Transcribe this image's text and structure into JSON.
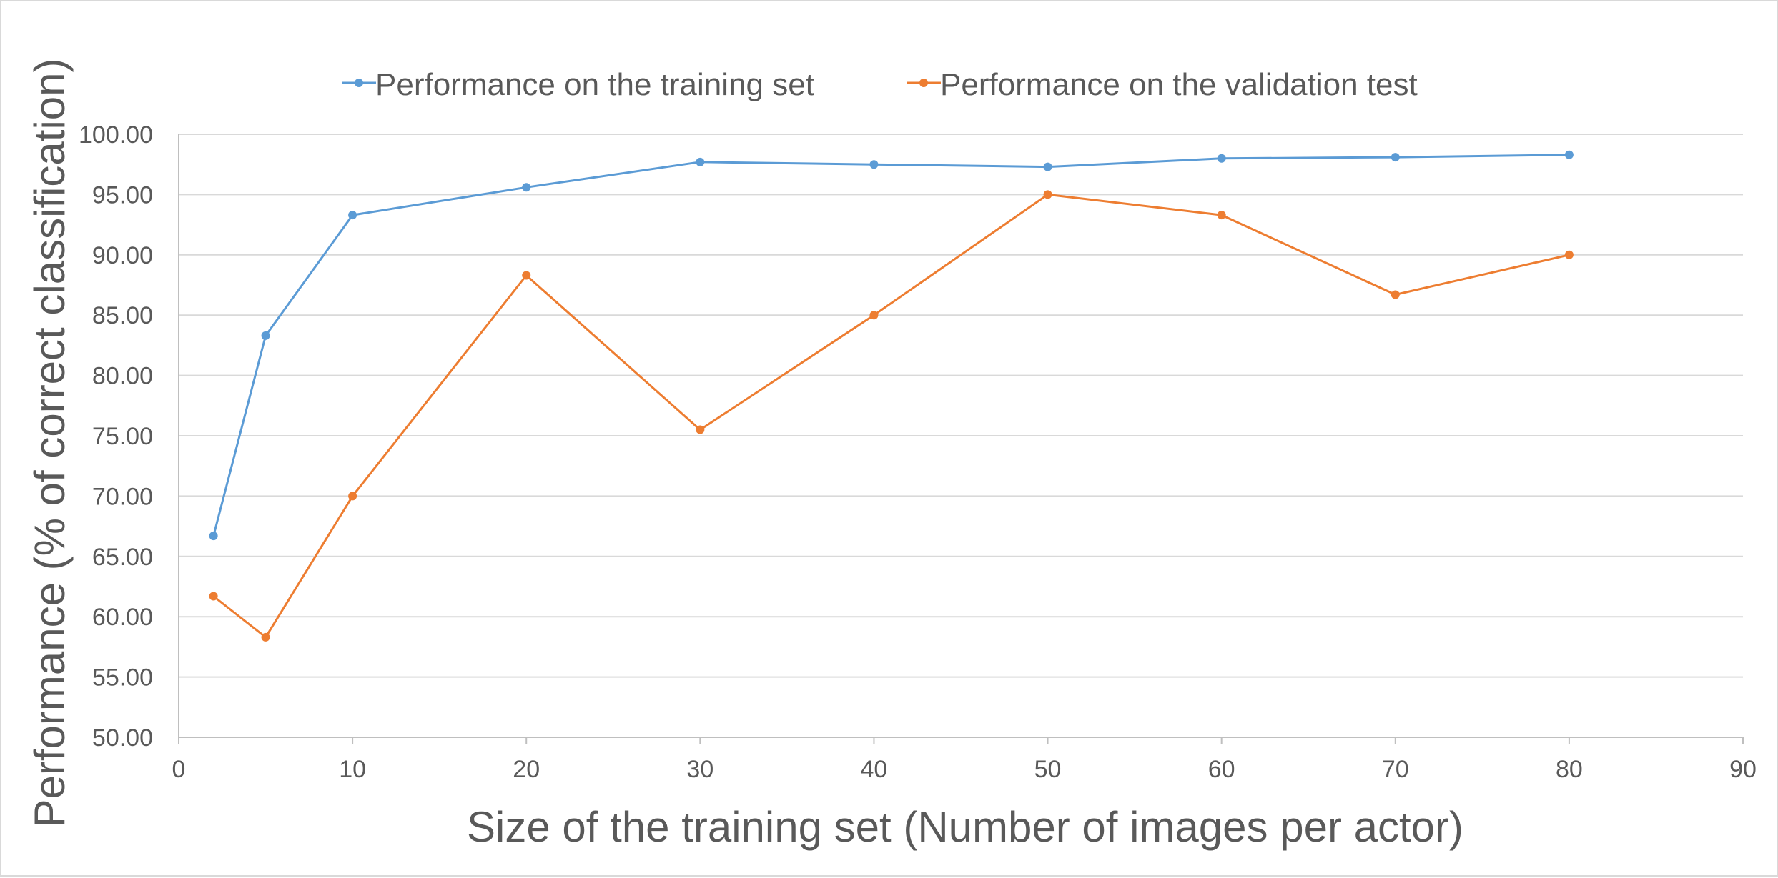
{
  "chart_data": {
    "type": "line",
    "title": "",
    "xlabel": "Size of the training set (Number of images per actor)",
    "ylabel": "Performance (% of correct classification)",
    "xlim": [
      0,
      90
    ],
    "ylim": [
      50,
      100
    ],
    "x_ticks": [
      "0",
      "10",
      "20",
      "30",
      "40",
      "50",
      "60",
      "70",
      "80",
      "90"
    ],
    "y_ticks": [
      "50.00",
      "55.00",
      "60.00",
      "65.00",
      "70.00",
      "75.00",
      "80.00",
      "85.00",
      "90.00",
      "95.00",
      "100.00"
    ],
    "grid": "horizontal",
    "legend_position": "top",
    "x": [
      2,
      5,
      10,
      20,
      30,
      40,
      50,
      60,
      70,
      80
    ],
    "series": [
      {
        "name": "Performance on the training set",
        "color": "#5b9bd5",
        "values": [
          66.7,
          83.3,
          93.3,
          95.6,
          97.7,
          97.5,
          97.3,
          98.0,
          98.1,
          98.3
        ]
      },
      {
        "name": "Performance on the validation test",
        "color": "#ed7d31",
        "values": [
          61.7,
          58.3,
          70.0,
          88.3,
          75.5,
          85.0,
          95.0,
          93.3,
          86.7,
          90.0
        ]
      }
    ]
  }
}
